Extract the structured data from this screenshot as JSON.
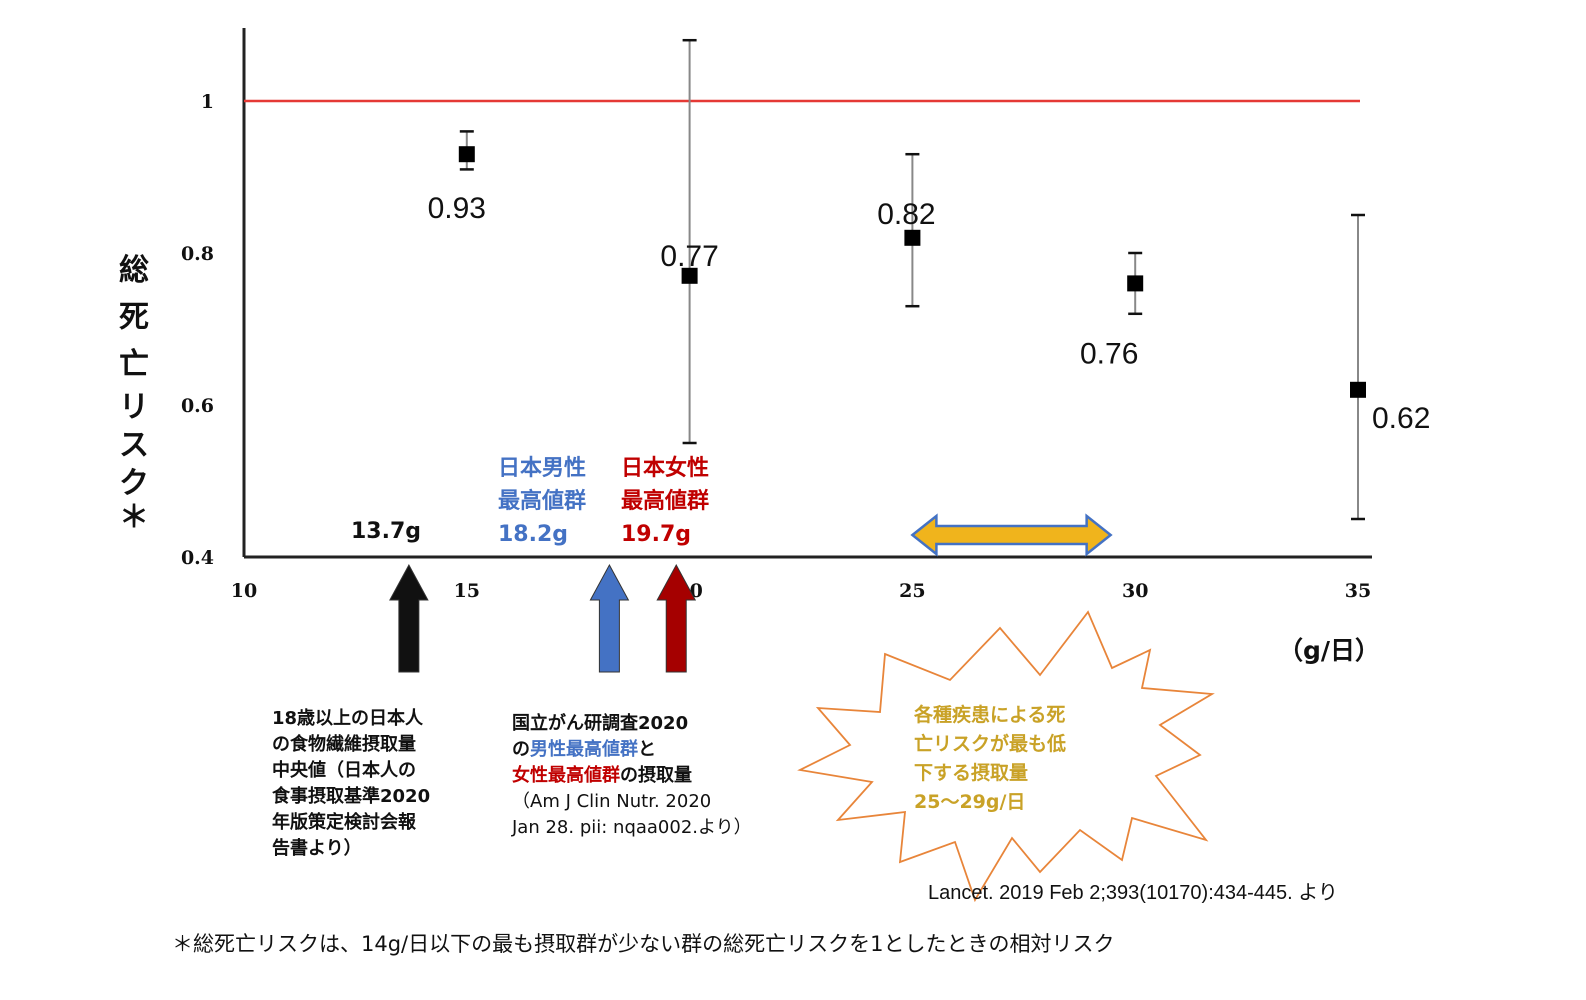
{
  "chart_data": {
    "type": "scatter",
    "title": "",
    "ylabel": "総死亡リスク＊",
    "xlabel": "（g/日）",
    "xlim": [
      10,
      35
    ],
    "ylim": [
      0.4,
      1.1
    ],
    "x_ticks": [
      "10",
      "15",
      "20",
      "25",
      "30",
      "35"
    ],
    "y_ticks": [
      "0.4",
      "0.6",
      "0.8",
      "1"
    ],
    "reference_line": {
      "y": 1,
      "color": "#e53935"
    },
    "points": [
      {
        "x": 15,
        "y": 0.93,
        "lower": 0.91,
        "upper": 0.96,
        "label": "0.93"
      },
      {
        "x": 20,
        "y": 0.77,
        "lower": 0.55,
        "upper": 1.08,
        "label": "0.77"
      },
      {
        "x": 25,
        "y": 0.82,
        "lower": 0.73,
        "upper": 0.93,
        "label": "0.82"
      },
      {
        "x": 30,
        "y": 0.76,
        "lower": 0.72,
        "upper": 0.8,
        "label": "0.76"
      },
      {
        "x": 35,
        "y": 0.62,
        "lower": 0.45,
        "upper": 0.85,
        "label": "0.62"
      }
    ],
    "markers": [
      {
        "x": 13.7,
        "label": "13.7g",
        "color": "#111111"
      },
      {
        "x": 18.2,
        "label_lines": [
          "日本男性",
          "最高値群",
          "18.2g"
        ],
        "color": "#4472c4"
      },
      {
        "x": 19.7,
        "label_lines": [
          "日本女性",
          "最高値群",
          "19.7g"
        ],
        "color": "#a50000"
      }
    ],
    "range_arrow": {
      "from": 25,
      "to": 29,
      "color": "#f0b41c"
    },
    "grid": false
  },
  "notes": {
    "median": [
      "18歳以上の日本人",
      "の食物繊維摂取量",
      "中央値（日本人の",
      "食事摂取基準2020",
      "年版策定検討会報",
      "告書より）"
    ],
    "ncc": {
      "line1": "国立がん研調査2020",
      "line2_a": "の",
      "line2_b": "男性最高値群",
      "line2_c": "と",
      "line3_a": "女性最高値群",
      "line3_b": "の摂取量",
      "line4": "（Am J Clin Nutr. 2020",
      "line5": "Jan 28. pii: nqaa002.より）"
    },
    "burst": [
      "各種疾患による死",
      "亡リスクが最も低",
      "下する摂取量",
      "25〜29g/日"
    ]
  },
  "citation": "Lancet. 2019 Feb 2;393(10170):434-445. より",
  "footnote": "＊総死亡リスクは、14g/日以下の最も摂取群が少ない群の総死亡リスクを1としたときの相対リスク",
  "colors": {
    "blue": "#4472c4",
    "darkred": "#a50000",
    "gold": "#f0b41c",
    "burst_outline": "#e8853a"
  }
}
